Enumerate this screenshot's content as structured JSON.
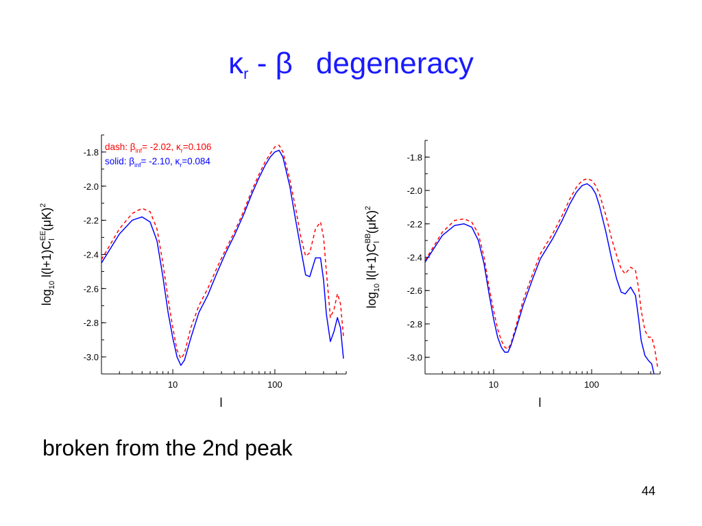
{
  "slide": {
    "title_kappa": "κ",
    "title_sub": "r",
    "title_dash": " - ",
    "title_beta": "β",
    "title_word": "degeneracy",
    "caption": "broken from the 2nd peak",
    "page_number": "44",
    "title_color": "#1a1aff"
  },
  "chart_data": [
    {
      "type": "line",
      "ylabel_prefix": "log",
      "ylabel_sub": "10",
      "ylabel_main": "l(l+1)C",
      "ylabel_sup": "EE",
      "ylabel_sub2": "l",
      "ylabel_unit": "(μK)",
      "ylabel_unit_sup": "2",
      "xlabel": "l",
      "x_scale": "log",
      "xlim": [
        2,
        500
      ],
      "ylim": [
        -3.1,
        -1.7
      ],
      "x_ticks": [
        10,
        100
      ],
      "y_ticks": [
        -3.0,
        -2.8,
        -2.6,
        -2.4,
        -2.2,
        -2.0,
        -1.8
      ],
      "y_tick_labels": [
        "-3.0",
        "-2.8",
        "-2.6",
        "-2.4",
        "-2.2",
        "-2.0",
        "-1.8"
      ],
      "x_tick_labels": [
        "10",
        "100"
      ],
      "legend": {
        "placement": "top-left",
        "entries": [
          {
            "style": "dash",
            "label": "dash:",
            "beta_sym": "β",
            "beta_sub": "inf",
            "beta_val": "= -2.02,",
            "kappa_sym": "κ",
            "kappa_sub": "r",
            "kappa_val": "=0.106",
            "color": "#ff0000"
          },
          {
            "style": "solid",
            "label": "solid:",
            "beta_sym": "β",
            "beta_sub": "inf",
            "beta_val": "= -2.10,",
            "kappa_sym": "κ",
            "kappa_sub": "r",
            "kappa_val": "=0.084",
            "color": "#0000ff"
          }
        ]
      },
      "series": [
        {
          "style": "dash",
          "color": "#ff0000",
          "x": [
            2,
            3,
            4,
            5,
            6,
            7,
            8,
            9,
            10,
            11,
            12,
            13,
            15,
            18,
            22,
            27,
            33,
            40,
            50,
            60,
            70,
            80,
            90,
            100,
            110,
            120,
            140,
            160,
            180,
            200,
            220,
            250,
            280,
            300,
            320,
            350,
            380,
            410,
            440,
            470
          ],
          "y": [
            -2.43,
            -2.25,
            -2.16,
            -2.13,
            -2.15,
            -2.25,
            -2.45,
            -2.66,
            -2.83,
            -2.96,
            -3.01,
            -2.98,
            -2.83,
            -2.7,
            -2.6,
            -2.48,
            -2.37,
            -2.27,
            -2.14,
            -2.02,
            -1.93,
            -1.86,
            -1.81,
            -1.77,
            -1.76,
            -1.8,
            -1.96,
            -2.13,
            -2.3,
            -2.41,
            -2.39,
            -2.25,
            -2.21,
            -2.3,
            -2.5,
            -2.77,
            -2.72,
            -2.63,
            -2.69,
            -2.88
          ]
        },
        {
          "style": "solid",
          "color": "#0000ff",
          "x": [
            2,
            3,
            4,
            5,
            6,
            7,
            8,
            9,
            10,
            11,
            12,
            13,
            15,
            18,
            22,
            27,
            33,
            40,
            50,
            60,
            70,
            80,
            90,
            100,
            110,
            120,
            140,
            160,
            180,
            200,
            220,
            250,
            280,
            300,
            320,
            350,
            380,
            410,
            440,
            470
          ],
          "y": [
            -2.45,
            -2.28,
            -2.2,
            -2.18,
            -2.21,
            -2.32,
            -2.53,
            -2.74,
            -2.89,
            -3.0,
            -3.05,
            -3.02,
            -2.89,
            -2.74,
            -2.64,
            -2.51,
            -2.39,
            -2.29,
            -2.16,
            -2.04,
            -1.95,
            -1.88,
            -1.83,
            -1.8,
            -1.79,
            -1.83,
            -2.0,
            -2.2,
            -2.37,
            -2.52,
            -2.53,
            -2.42,
            -2.42,
            -2.55,
            -2.75,
            -2.91,
            -2.85,
            -2.77,
            -2.83,
            -3.01
          ]
        }
      ]
    },
    {
      "type": "line",
      "ylabel_prefix": "log",
      "ylabel_sub": "10",
      "ylabel_main": "l(l+1)C",
      "ylabel_sup": "BB",
      "ylabel_sub2": "l",
      "ylabel_unit": "(μK)",
      "ylabel_unit_sup": "2",
      "xlabel": "l",
      "x_scale": "log",
      "xlim": [
        2,
        500
      ],
      "ylim": [
        -3.1,
        -1.7
      ],
      "x_ticks": [
        10,
        100
      ],
      "y_ticks": [
        -3.0,
        -2.8,
        -2.6,
        -2.4,
        -2.2,
        -2.0,
        -1.8
      ],
      "y_tick_labels": [
        "-3.0",
        "-2.8",
        "-2.6",
        "-2.4",
        "-2.2",
        "-2.0",
        "-1.8"
      ],
      "x_tick_labels": [
        "10",
        "100"
      ],
      "series": [
        {
          "style": "dash",
          "color": "#ff0000",
          "x": [
            2,
            3,
            4,
            5,
            6,
            7,
            8,
            9,
            10,
            11,
            12,
            13,
            14,
            15,
            17,
            20,
            25,
            30,
            40,
            50,
            60,
            70,
            80,
            90,
            100,
            110,
            120,
            140,
            160,
            180,
            200,
            220,
            250,
            280,
            300,
            320,
            350,
            380,
            410,
            440,
            470
          ],
          "y": [
            -2.42,
            -2.25,
            -2.18,
            -2.17,
            -2.19,
            -2.26,
            -2.4,
            -2.58,
            -2.72,
            -2.83,
            -2.9,
            -2.94,
            -2.95,
            -2.92,
            -2.81,
            -2.66,
            -2.5,
            -2.38,
            -2.26,
            -2.15,
            -2.05,
            -1.98,
            -1.94,
            -1.93,
            -1.94,
            -1.97,
            -2.02,
            -2.15,
            -2.29,
            -2.39,
            -2.47,
            -2.5,
            -2.46,
            -2.48,
            -2.58,
            -2.72,
            -2.84,
            -2.88,
            -2.88,
            -2.95,
            -3.06
          ]
        },
        {
          "style": "solid",
          "color": "#0000ff",
          "x": [
            2,
            3,
            4,
            5,
            6,
            7,
            8,
            9,
            10,
            11,
            12,
            13,
            14,
            15,
            17,
            20,
            25,
            30,
            40,
            50,
            60,
            70,
            80,
            90,
            100,
            110,
            120,
            140,
            160,
            180,
            200,
            220,
            250,
            280,
            300,
            320,
            350,
            380,
            410,
            440
          ],
          "y": [
            -2.43,
            -2.27,
            -2.21,
            -2.2,
            -2.22,
            -2.3,
            -2.44,
            -2.62,
            -2.77,
            -2.88,
            -2.94,
            -2.97,
            -2.97,
            -2.93,
            -2.83,
            -2.69,
            -2.53,
            -2.41,
            -2.29,
            -2.18,
            -2.08,
            -2.01,
            -1.97,
            -1.96,
            -1.98,
            -2.02,
            -2.09,
            -2.25,
            -2.41,
            -2.53,
            -2.61,
            -2.62,
            -2.58,
            -2.63,
            -2.76,
            -2.9,
            -2.99,
            -3.02,
            -3.04,
            -3.12
          ]
        }
      ]
    }
  ]
}
